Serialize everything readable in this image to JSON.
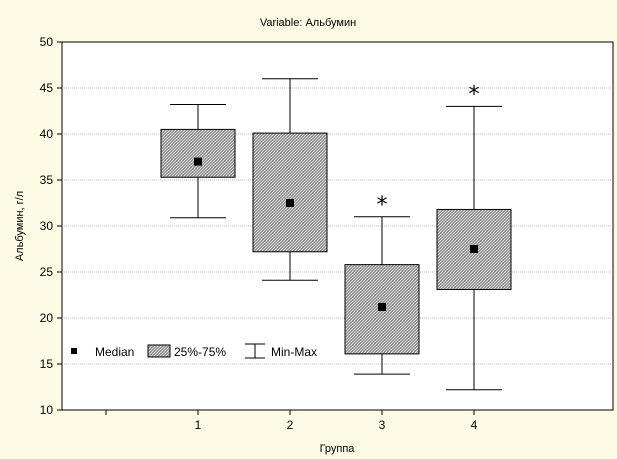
{
  "chart_data": {
    "type": "boxplot",
    "title": "Variable: Альбумин",
    "xlabel": "Группа",
    "ylabel": "Альбумин, г/л",
    "ylim": [
      10,
      50
    ],
    "yticks": [
      10,
      15,
      20,
      25,
      30,
      35,
      40,
      45,
      50
    ],
    "grid": true,
    "legend_position": "left-lower",
    "legend": [
      {
        "label": "Median",
        "symbol": "square"
      },
      {
        "label": "25%-75%",
        "symbol": "hatched-box"
      },
      {
        "label": "Min-Max",
        "symbol": "whisker"
      }
    ],
    "categories": [
      "1",
      "2",
      "3",
      "4"
    ],
    "series": [
      {
        "category": "1",
        "min": 30.9,
        "q1": 35.3,
        "median": 37.0,
        "q3": 40.5,
        "max": 43.2,
        "marker": ""
      },
      {
        "category": "2",
        "min": 24.1,
        "q1": 27.2,
        "median": 32.5,
        "q3": 40.1,
        "max": 46.0,
        "marker": ""
      },
      {
        "category": "3",
        "min": 13.9,
        "q1": 16.1,
        "median": 21.2,
        "q3": 25.8,
        "max": 31.0,
        "marker": "*"
      },
      {
        "category": "4",
        "min": 12.2,
        "q1": 23.1,
        "median": 27.5,
        "q3": 31.8,
        "max": 43.0,
        "marker": "*"
      }
    ],
    "colors": {
      "background": "#fdfbe6",
      "plot_area": "#ffffff",
      "box_fill": "#909090",
      "grid": "#a8a8a8"
    }
  }
}
